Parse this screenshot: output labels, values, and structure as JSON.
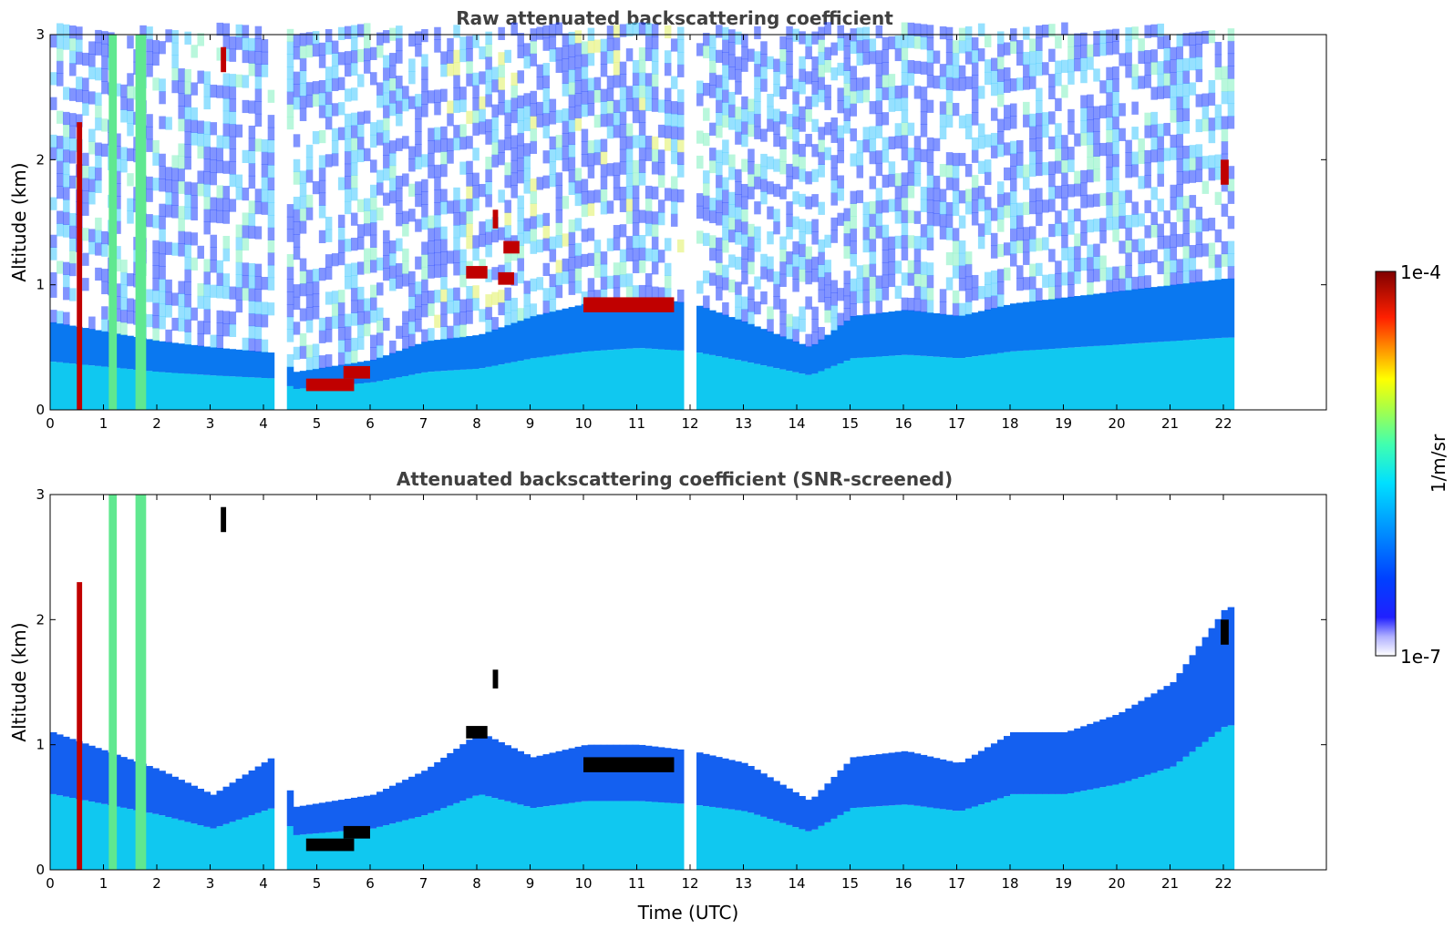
{
  "chart_data": [
    {
      "type": "heatmap",
      "title": "Raw attenuated backscattering coefficient",
      "xlabel": "",
      "ylabel": "Altitude (km)",
      "xlim": [
        0,
        24
      ],
      "ylim": [
        0,
        3
      ],
      "xticks": [
        "0",
        "1",
        "2",
        "3",
        "4",
        "5",
        "6",
        "7",
        "8",
        "9",
        "10",
        "11",
        "12",
        "13",
        "14",
        "15",
        "16",
        "17",
        "18",
        "19",
        "20",
        "21",
        "22"
      ],
      "yticks": [
        "0",
        "1",
        "2",
        "3"
      ],
      "data_end_hour": 22.1,
      "data_gaps_hours": [
        [
          4.3,
          4.4
        ],
        [
          11.9,
          12.0
        ]
      ],
      "boundary_layer_top_km": [
        [
          0,
          0.7
        ],
        [
          2,
          0.55
        ],
        [
          3,
          0.5
        ],
        [
          4.3,
          0.45
        ],
        [
          4.5,
          0.3
        ],
        [
          6,
          0.4
        ],
        [
          7,
          0.55
        ],
        [
          8,
          0.6
        ],
        [
          9,
          0.75
        ],
        [
          10,
          0.85
        ],
        [
          11,
          0.9
        ],
        [
          12,
          0.85
        ],
        [
          13,
          0.7
        ],
        [
          14.2,
          0.5
        ],
        [
          15,
          0.75
        ],
        [
          16,
          0.8
        ],
        [
          17,
          0.75
        ],
        [
          18,
          0.85
        ],
        [
          19,
          0.9
        ],
        [
          20,
          0.95
        ],
        [
          21,
          1.0
        ],
        [
          22,
          1.05
        ]
      ],
      "clouds": [
        {
          "x": [
            0.5,
            0.6
          ],
          "y": [
            0,
            2.3
          ],
          "level": "high"
        },
        {
          "x": [
            1.1,
            1.25
          ],
          "y": [
            0,
            3
          ],
          "level": "mid"
        },
        {
          "x": [
            1.6,
            1.8
          ],
          "y": [
            0,
            3
          ],
          "level": "mid"
        },
        {
          "x": [
            3.2,
            3.3
          ],
          "y": [
            2.7,
            2.9
          ],
          "level": "high"
        },
        {
          "x": [
            4.8,
            5.7
          ],
          "y": [
            0.15,
            0.25
          ],
          "level": "high"
        },
        {
          "x": [
            5.5,
            6.0
          ],
          "y": [
            0.25,
            0.35
          ],
          "level": "high"
        },
        {
          "x": [
            7.8,
            8.2
          ],
          "y": [
            1.05,
            1.15
          ],
          "level": "high"
        },
        {
          "x": [
            8.3,
            8.4
          ],
          "y": [
            1.45,
            1.6
          ],
          "level": "high"
        },
        {
          "x": [
            8.5,
            8.8
          ],
          "y": [
            1.25,
            1.35
          ],
          "level": "high"
        },
        {
          "x": [
            8.4,
            8.7
          ],
          "y": [
            1.0,
            1.1
          ],
          "level": "high"
        },
        {
          "x": [
            10.0,
            11.7
          ],
          "y": [
            0.78,
            0.9
          ],
          "level": "high"
        },
        {
          "x": [
            21.95,
            22.1
          ],
          "y": [
            1.8,
            2.0
          ],
          "level": "high"
        }
      ]
    },
    {
      "type": "heatmap",
      "title": "Attenuated backscattering coefficient (SNR-screened)",
      "xlabel": "Time (UTC)",
      "ylabel": "Altitude (km)",
      "xlim": [
        0,
        24
      ],
      "ylim": [
        0,
        3
      ],
      "xticks": [
        "0",
        "1",
        "2",
        "3",
        "4",
        "5",
        "6",
        "7",
        "8",
        "9",
        "10",
        "11",
        "12",
        "13",
        "14",
        "15",
        "16",
        "17",
        "18",
        "19",
        "20",
        "21",
        "22"
      ],
      "yticks": [
        "0",
        "1",
        "2",
        "3"
      ],
      "data_end_hour": 22.1,
      "data_gaps_hours": [
        [
          4.3,
          4.4
        ],
        [
          11.9,
          12.0
        ]
      ],
      "boundary_layer_top_km": [
        [
          0,
          1.1
        ],
        [
          2,
          0.8
        ],
        [
          3,
          0.6
        ],
        [
          4.3,
          0.95
        ],
        [
          4.5,
          0.5
        ],
        [
          6,
          0.6
        ],
        [
          7,
          0.8
        ],
        [
          8,
          1.1
        ],
        [
          9,
          0.9
        ],
        [
          10,
          1.0
        ],
        [
          11,
          1.0
        ],
        [
          12,
          0.95
        ],
        [
          13,
          0.85
        ],
        [
          14.2,
          0.55
        ],
        [
          15,
          0.9
        ],
        [
          16,
          0.95
        ],
        [
          17,
          0.85
        ],
        [
          18,
          1.1
        ],
        [
          19,
          1.1
        ],
        [
          20,
          1.25
        ],
        [
          21,
          1.5
        ],
        [
          22,
          2.1
        ]
      ],
      "clouds": [
        {
          "x": [
            0.5,
            0.6
          ],
          "y": [
            0,
            2.3
          ],
          "level": "high"
        },
        {
          "x": [
            1.1,
            1.25
          ],
          "y": [
            0,
            3
          ],
          "level": "mid"
        },
        {
          "x": [
            1.6,
            1.8
          ],
          "y": [
            0,
            3
          ],
          "level": "mid"
        },
        {
          "x": [
            3.2,
            3.3
          ],
          "y": [
            2.7,
            2.9
          ],
          "level": "saturated"
        },
        {
          "x": [
            4.8,
            5.7
          ],
          "y": [
            0.15,
            0.25
          ],
          "level": "saturated"
        },
        {
          "x": [
            5.5,
            6.0
          ],
          "y": [
            0.25,
            0.35
          ],
          "level": "saturated"
        },
        {
          "x": [
            7.8,
            8.2
          ],
          "y": [
            1.05,
            1.15
          ],
          "level": "saturated"
        },
        {
          "x": [
            8.3,
            8.4
          ],
          "y": [
            1.45,
            1.6
          ],
          "level": "saturated"
        },
        {
          "x": [
            10.0,
            11.7
          ],
          "y": [
            0.78,
            0.9
          ],
          "level": "saturated"
        },
        {
          "x": [
            21.95,
            22.1
          ],
          "y": [
            1.8,
            2.0
          ],
          "level": "saturated"
        }
      ]
    }
  ],
  "colorbar": {
    "label": "1/m/sr",
    "max_label": "1e-4",
    "min_label": "1e-7",
    "colors": [
      "#ffffff",
      "#d8d8ff",
      "#a0a0ff",
      "#0000ff",
      "#0060ff",
      "#00c8ff",
      "#40ffc0",
      "#b0ff50",
      "#ffff00",
      "#ff8000",
      "#ff0000",
      "#800000"
    ]
  }
}
